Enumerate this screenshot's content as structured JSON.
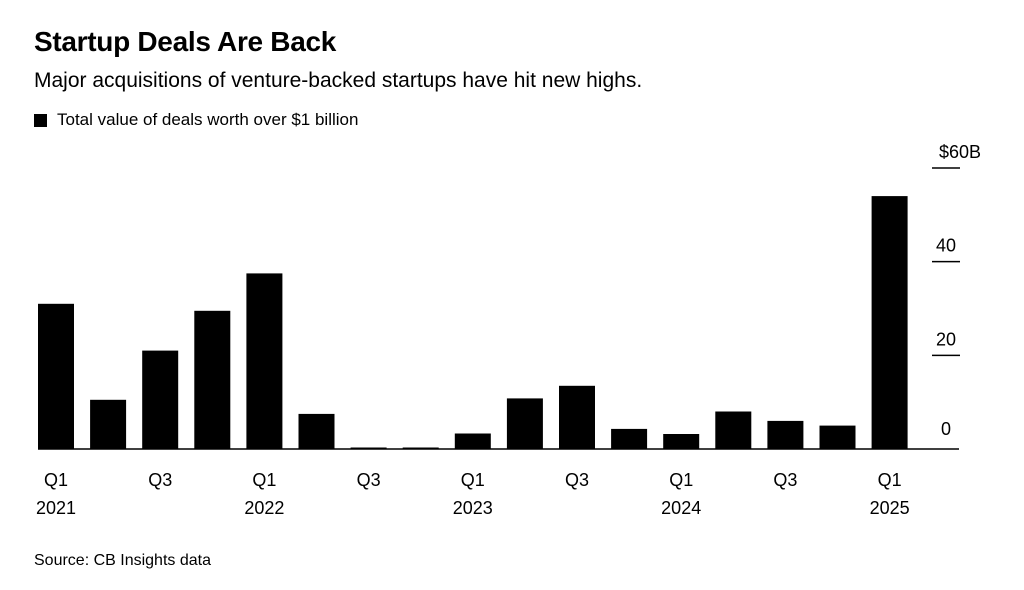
{
  "title": "Startup Deals Are Back",
  "subtitle": "Major acquisitions of venture-backed startups have hit new highs.",
  "legend": {
    "label": "Total value of deals worth over $1 billion",
    "color": "#000000"
  },
  "source": "Source: CB Insights data",
  "chart_data": {
    "type": "bar",
    "title": "Startup Deals Are Back",
    "subtitle": "Major acquisitions of venture-backed startups have hit new highs.",
    "xlabel": "",
    "ylabel": "",
    "ylim": [
      0,
      60
    ],
    "grid": false,
    "legend_position": "top-left",
    "y_axis_position": "right",
    "bar_color": "#000000",
    "categories": [
      "Q1 2021",
      "Q2 2021",
      "Q3 2021",
      "Q4 2021",
      "Q1 2022",
      "Q2 2022",
      "Q3 2022",
      "Q4 2022",
      "Q1 2023",
      "Q2 2023",
      "Q3 2023",
      "Q4 2023",
      "Q1 2024",
      "Q2 2024",
      "Q3 2024",
      "Q4 2024",
      "Q1 2025"
    ],
    "series": [
      {
        "name": "Total value of deals worth over $1 billion",
        "values": [
          31,
          10.5,
          21,
          29.5,
          37.5,
          7.5,
          0.3,
          0.3,
          3.3,
          10.8,
          13.5,
          4.3,
          3.2,
          8,
          6,
          5,
          54
        ]
      }
    ],
    "y_ticks": [
      {
        "value": 0,
        "label": "0"
      },
      {
        "value": 20,
        "label": "20"
      },
      {
        "value": 40,
        "label": "40"
      },
      {
        "value": 60,
        "label": "$60B"
      }
    ],
    "x_tick_labels": [
      {
        "index": 0,
        "quarter": "Q1",
        "year": "2021"
      },
      {
        "index": 2,
        "quarter": "Q3",
        "year": ""
      },
      {
        "index": 4,
        "quarter": "Q1",
        "year": "2022"
      },
      {
        "index": 6,
        "quarter": "Q3",
        "year": ""
      },
      {
        "index": 8,
        "quarter": "Q1",
        "year": "2023"
      },
      {
        "index": 10,
        "quarter": "Q3",
        "year": ""
      },
      {
        "index": 12,
        "quarter": "Q1",
        "year": "2024"
      },
      {
        "index": 14,
        "quarter": "Q3",
        "year": ""
      },
      {
        "index": 16,
        "quarter": "Q1",
        "year": "2025"
      }
    ]
  }
}
